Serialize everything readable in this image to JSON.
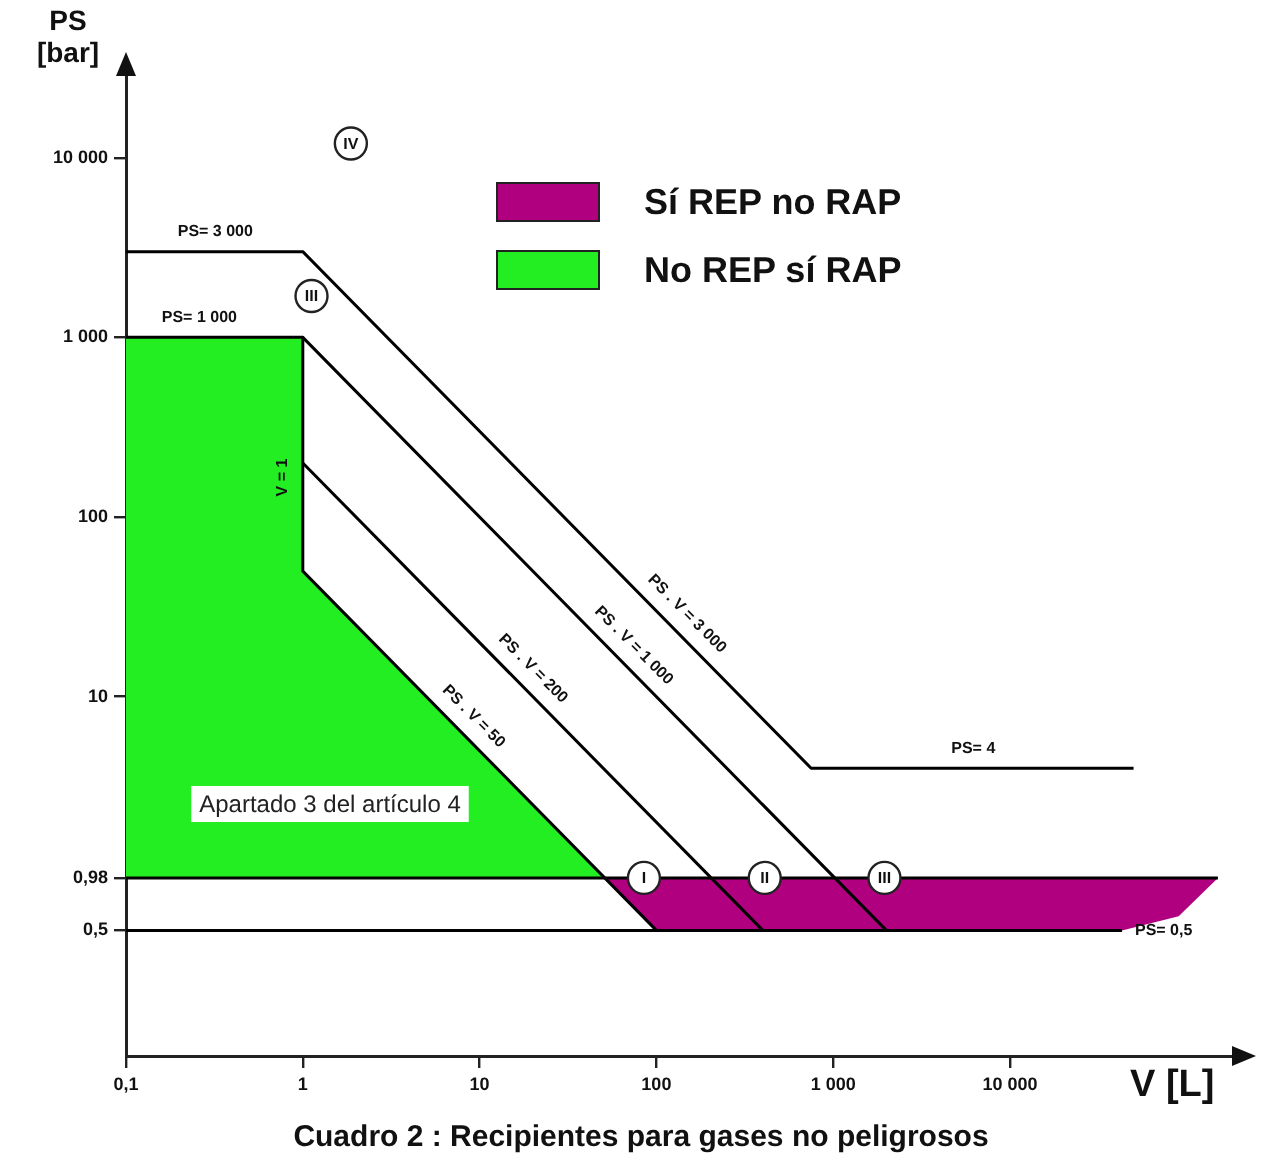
{
  "chart_data": {
    "type": "line",
    "title": "Cuadro 2 : Recipientes para gases no peligrosos",
    "xlabel": "V [L]",
    "ylabel": "PS [bar]",
    "log": "xy",
    "grid": false,
    "legend": "top right",
    "marker": "none",
    "line_style": "solid",
    "xlim": [
      0.1,
      200000
    ],
    "xticks": [
      {
        "value": 0.1,
        "label": "0,1"
      },
      1,
      10,
      100,
      {
        "value": 1000,
        "label": "1 000"
      },
      {
        "value": 10000,
        "label": "10 000"
      }
    ],
    "ylim": [
      0.1,
      30000
    ],
    "yticks": [
      {
        "value": 0.5,
        "label": "0,5"
      },
      {
        "value": 0.98,
        "label": "0,98"
      },
      10,
      100,
      {
        "value": 1000,
        "label": "1 000"
      },
      {
        "value": 10000,
        "label": "10 000"
      }
    ],
    "series": [
      {
        "type": "area",
        "name": "No REP sí RAP",
        "color": "#22ee22",
        "x": [
          0.1,
          0.1,
          1,
          1,
          51
        ],
        "values": [
          0.98,
          1000,
          1000,
          50,
          0.98
        ]
      },
      {
        "type": "area",
        "name": "Sí REP no RAP",
        "color": "#b0007f",
        "x": [
          51,
          150000,
          90000,
          43000,
          100
        ],
        "values": [
          0.98,
          0.98,
          0.6,
          0.5,
          0.5
        ]
      },
      {
        "color": "#000000",
        "x": [
          0.1,
          1,
          750,
          50000
        ],
        "values": [
          3000,
          3000,
          4,
          4
        ]
      },
      {
        "color": "#000000",
        "x": [
          0.1,
          1,
          2000
        ],
        "values": [
          1000,
          1000,
          0.5
        ]
      },
      {
        "color": "#000000",
        "x": [
          1,
          400
        ],
        "values": [
          200,
          0.5
        ]
      },
      {
        "color": "#000000",
        "x": [
          1,
          1,
          100
        ],
        "values": [
          1000,
          50,
          0.5
        ]
      },
      {
        "color": "#000000",
        "x": [
          0.1,
          150000
        ],
        "values": [
          0.98,
          0.98
        ]
      },
      {
        "color": "#000000",
        "x": [
          0.1,
          43000
        ],
        "values": [
          0.5,
          0.5
        ]
      }
    ],
    "annotations": [
      {
        "text": "IV",
        "x": 1.87,
        "y": 12000
      },
      {
        "text": "III",
        "x": 1.12,
        "y": 1700
      },
      {
        "text": "I",
        "x": 85,
        "y": 0.98
      },
      {
        "text": "II",
        "x": 410,
        "y": 0.98
      },
      {
        "text": "III",
        "x": 1950,
        "y": 0.98
      },
      {
        "text": "PS= 3 000",
        "x": 0.32,
        "y": 3000
      },
      {
        "text": "PS= 1 000",
        "x": 0.26,
        "y": 1000
      },
      {
        "text": "PS= 4",
        "x": 6200,
        "y": 4
      },
      {
        "text": "PS= 0,5",
        "x": 74000,
        "y": 0.5
      },
      {
        "text": "V = 1",
        "x": 1,
        "y": 166
      },
      {
        "text": "PS . V = 3 000",
        "x": 124,
        "y": 24.2
      },
      {
        "text": "PS . V = 1 000",
        "x": 62,
        "y": 16.1
      },
      {
        "text": "PS . V = 200",
        "x": 16.7,
        "y": 12
      },
      {
        "text": "PS . V = 50",
        "x": 7.7,
        "y": 6.5
      },
      "Apartado 3 del artículo 4"
    ]
  }
}
